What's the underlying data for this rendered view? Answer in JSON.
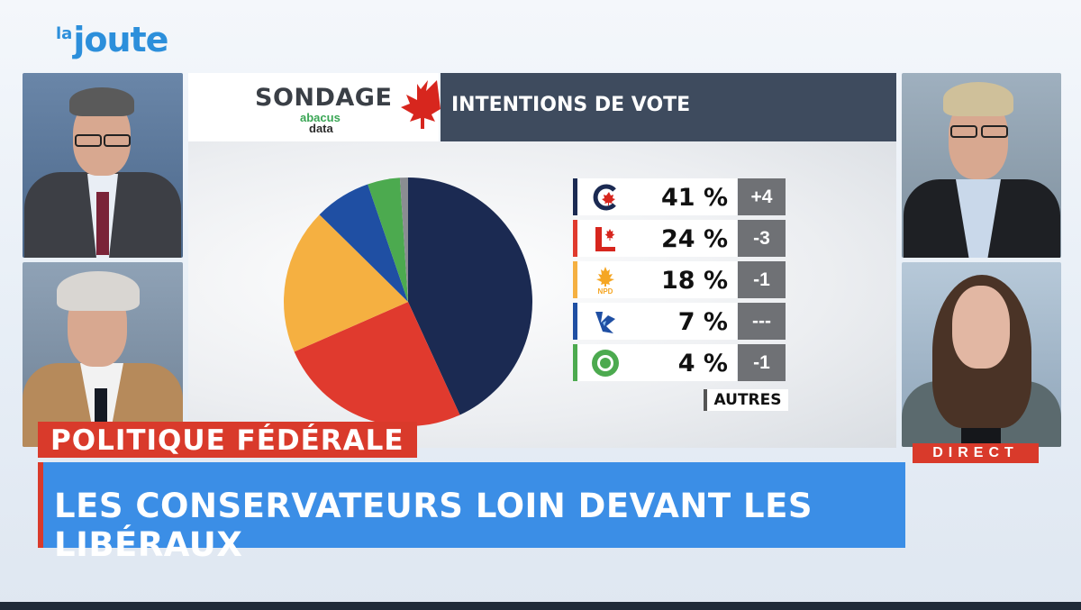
{
  "channel": {
    "logo_prefix": "la",
    "logo_main": "joute"
  },
  "graphic": {
    "sondage_label": "SONDAGE",
    "pollster_line1": "abacus",
    "pollster_line2": "data",
    "title": "INTENTIONS DE VOTE",
    "others_label": "AUTRES"
  },
  "chart_data": {
    "type": "pie",
    "title": "INTENTIONS DE VOTE",
    "categories": [
      "Conservateur",
      "Libéral",
      "NPD",
      "Bloc Québécois",
      "Vert",
      "Autres"
    ],
    "values": [
      41,
      24,
      18,
      7,
      4,
      1
    ],
    "colors": [
      "#1b2a52",
      "#e03a2e",
      "#f5b041",
      "#1f4fa3",
      "#4caa4f",
      "#8a8d92"
    ],
    "rows": [
      {
        "party_icon": "conservative-logo",
        "percent": "41 %",
        "change": "+4",
        "color": "#1b2a52"
      },
      {
        "party_icon": "liberal-logo",
        "percent": "24 %",
        "change": "-3",
        "color": "#e03a2e"
      },
      {
        "party_icon": "ndp-logo",
        "percent": "18 %",
        "change": "-1",
        "color": "#f5b041"
      },
      {
        "party_icon": "bloc-logo",
        "percent": "7 %",
        "change": "---",
        "color": "#1f4fa3"
      },
      {
        "party_icon": "green-logo",
        "percent": "4 %",
        "change": "-1",
        "color": "#4caa4f"
      }
    ]
  },
  "lower_third": {
    "topic": "POLITIQUE FÉDÉRALE",
    "headline": "LES CONSERVATEURS LOIN DEVANT LES LIBÉRAUX",
    "live_badge": "DIRECT"
  },
  "colors": {
    "accent_red": "#d93a2b",
    "accent_blue": "#3b8ee6",
    "header_slate": "#3e4b5e"
  }
}
